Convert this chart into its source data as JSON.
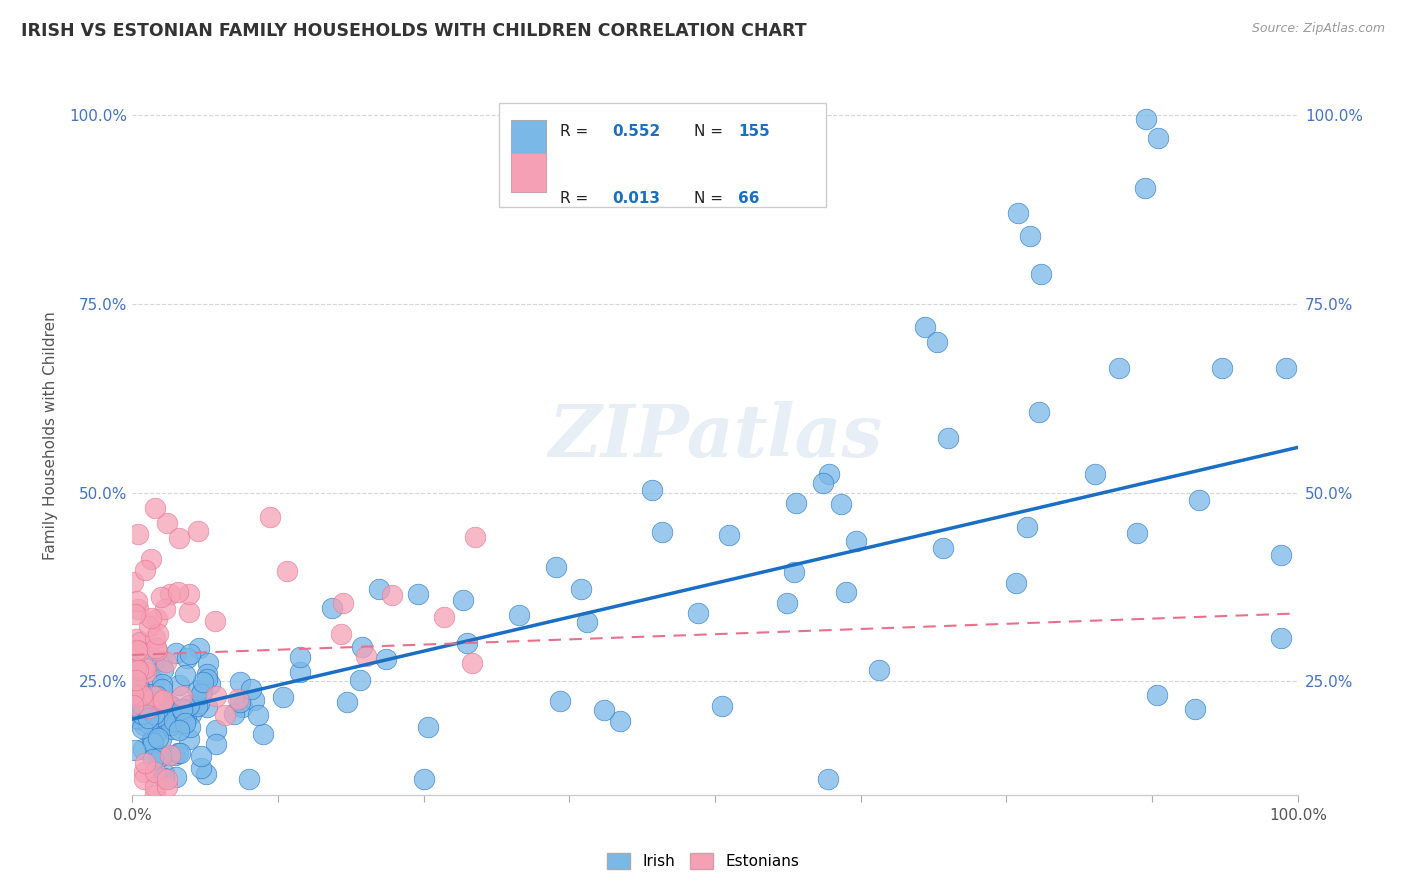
{
  "title": "IRISH VS ESTONIAN FAMILY HOUSEHOLDS WITH CHILDREN CORRELATION CHART",
  "source": "Source: ZipAtlas.com",
  "ylabel": "Family Households with Children",
  "irish_R": "0.552",
  "irish_N": "155",
  "estonian_R": "0.013",
  "estonian_N": "66",
  "irish_color": "#7ab8e8",
  "estonian_color": "#f5a0b5",
  "irish_line_color": "#1a6fc4",
  "estonian_line_color": "#e8708a",
  "watermark_color": "#e8eef5",
  "background_color": "#ffffff",
  "grid_color": "#cccccc",
  "title_color": "#333333",
  "label_color": "#888888",
  "axis_label_color": "#555555",
  "legend_R_color": "#1a6fc4",
  "tick_color": "#4472c4",
  "xlim": [
    0.0,
    1.0
  ],
  "ylim_low": 0.1,
  "ylim_high": 1.05,
  "yticks": [
    0.25,
    0.5,
    0.75,
    1.0
  ],
  "ytick_labels": [
    "25.0%",
    "50.0%",
    "75.0%",
    "100.0%"
  ]
}
